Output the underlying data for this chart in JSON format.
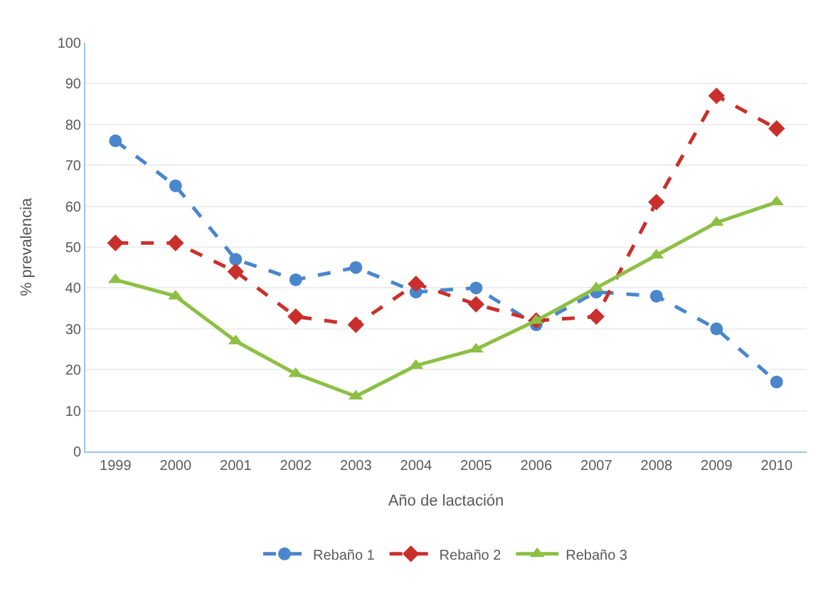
{
  "chart_data": {
    "type": "line",
    "xlabel": "Año de lactación",
    "ylabel": "% prevalencia",
    "categories": [
      "1999",
      "2000",
      "2001",
      "2002",
      "2003",
      "2004",
      "2005",
      "2006",
      "2007",
      "2008",
      "2009",
      "2010"
    ],
    "series": [
      {
        "name": "Rebaño 1",
        "color": "#4a86cc",
        "marker": "circle",
        "line_style": "dashed",
        "values": [
          76,
          65,
          47,
          42,
          45,
          39,
          40,
          31,
          39,
          38,
          30,
          17
        ]
      },
      {
        "name": "Rebaño 2",
        "color": "#c9302c",
        "marker": "diamond",
        "line_style": "dashed",
        "values": [
          51,
          51,
          44,
          33,
          31,
          41,
          36,
          32,
          33,
          61,
          87,
          79
        ]
      },
      {
        "name": "Rebaño 3",
        "color": "#8dbf44",
        "marker": "triangle",
        "line_style": "solid",
        "values": [
          42,
          38,
          27,
          19,
          13.5,
          21,
          25,
          32,
          40,
          48,
          56,
          61
        ]
      }
    ],
    "ylim": [
      0,
      100
    ],
    "yticks": [
      0,
      10,
      20,
      30,
      40,
      50,
      60,
      70,
      80,
      90,
      100
    ],
    "grid": "y",
    "legend": "bottom"
  }
}
